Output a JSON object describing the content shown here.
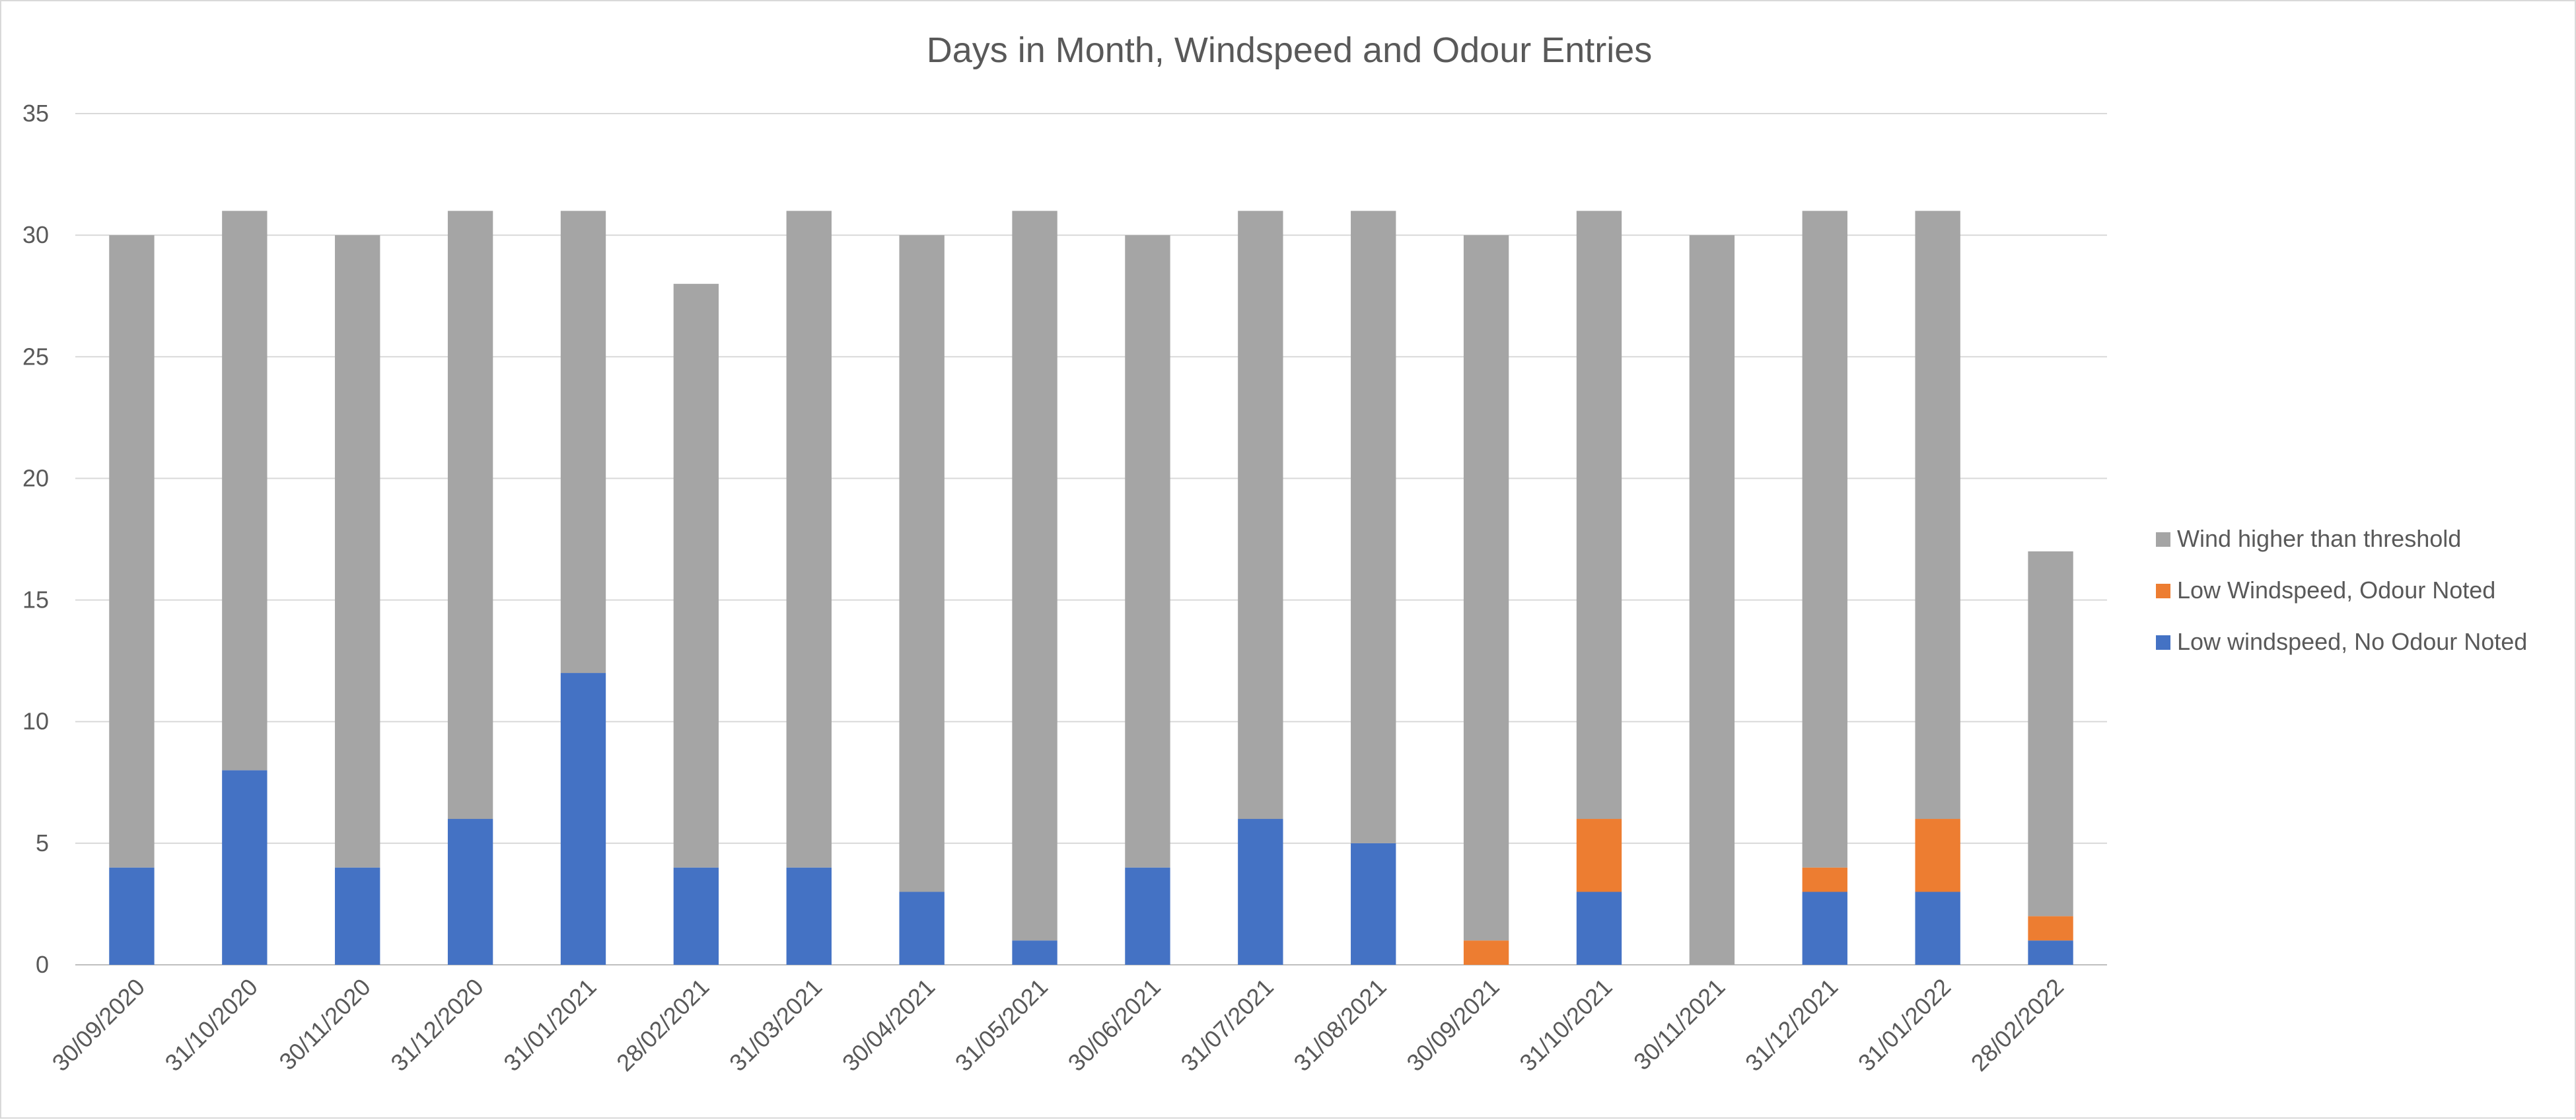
{
  "chart_data": {
    "type": "bar",
    "stacked": true,
    "title": "Days in Month, Windspeed and Odour Entries",
    "xlabel": "",
    "ylabel": "",
    "ylim": [
      0,
      35
    ],
    "yticks": [
      0,
      5,
      10,
      15,
      20,
      25,
      30,
      35
    ],
    "grid": true,
    "legend_position": "right",
    "categories": [
      "30/09/2020",
      "31/10/2020",
      "30/11/2020",
      "31/12/2020",
      "31/01/2021",
      "28/02/2021",
      "31/03/2021",
      "30/04/2021",
      "31/05/2021",
      "30/06/2021",
      "31/07/2021",
      "31/08/2021",
      "30/09/2021",
      "31/10/2021",
      "30/11/2021",
      "31/12/2021",
      "31/01/2022",
      "28/02/2022"
    ],
    "series": [
      {
        "name": "Low windspeed, No Odour Noted",
        "color": "#4472c4",
        "values": [
          4,
          8,
          4,
          6,
          12,
          4,
          4,
          3,
          1,
          4,
          6,
          5,
          0,
          3,
          0,
          3,
          3,
          1
        ]
      },
      {
        "name": "Low Windspeed, Odour Noted",
        "color": "#ed7d31",
        "values": [
          0,
          0,
          0,
          0,
          0,
          0,
          0,
          0,
          0,
          0,
          0,
          0,
          1,
          3,
          0,
          1,
          3,
          1
        ]
      },
      {
        "name": "Wind higher than threshold",
        "color": "#a5a5a5",
        "values": [
          26,
          23,
          26,
          25,
          19,
          24,
          27,
          27,
          30,
          26,
          25,
          26,
          29,
          25,
          30,
          27,
          25,
          15
        ]
      }
    ],
    "legend_order": [
      "Wind higher than threshold",
      "Low Windspeed, Odour Noted",
      "Low windspeed, No Odour Noted"
    ]
  }
}
